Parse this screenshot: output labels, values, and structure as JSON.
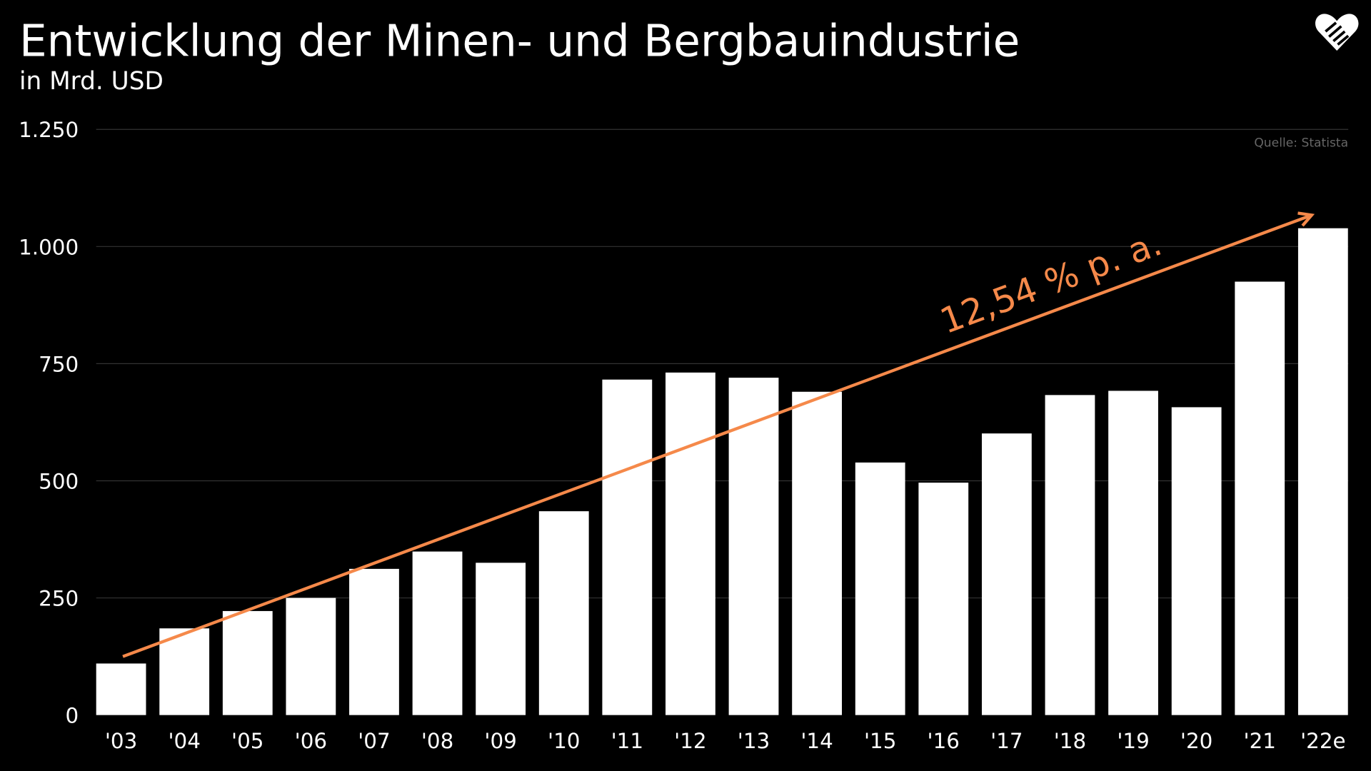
{
  "chart_data": {
    "type": "bar",
    "title": "Entwicklung der Minen- und Bergbauindustrie",
    "subtitle": "in Mrd. USD",
    "source": "Quelle: Statista",
    "annotation": "12,54 % p. a.",
    "categories": [
      "'03",
      "'04",
      "'05",
      "'06",
      "'07",
      "'08",
      "'09",
      "'10",
      "'11",
      "'12",
      "'13",
      "'14",
      "'15",
      "'16",
      "'17",
      "'18",
      "'19",
      "'20",
      "'21",
      "'22e"
    ],
    "values": [
      110,
      185,
      222,
      250,
      312,
      349,
      325,
      435,
      716,
      731,
      720,
      690,
      539,
      496,
      601,
      683,
      692,
      657,
      925,
      1039
    ],
    "ylim": [
      0,
      1250
    ],
    "yticks": [
      0,
      250,
      500,
      750,
      1000,
      1250
    ],
    "ytick_labels": [
      "0",
      "250",
      "500",
      "750",
      "1.000",
      "1.250"
    ],
    "grid": true,
    "trend_arrow": {
      "from": {
        "x": "'03",
        "y": 125
      },
      "to": {
        "x": "'22e",
        "y": 1067
      }
    },
    "colors": {
      "background": "#000000",
      "bars": "#ffffff",
      "trend": "#f5894a",
      "grid": "#333333",
      "source": "#666666"
    }
  },
  "logo": {
    "icon": "heart-handshake-icon"
  }
}
